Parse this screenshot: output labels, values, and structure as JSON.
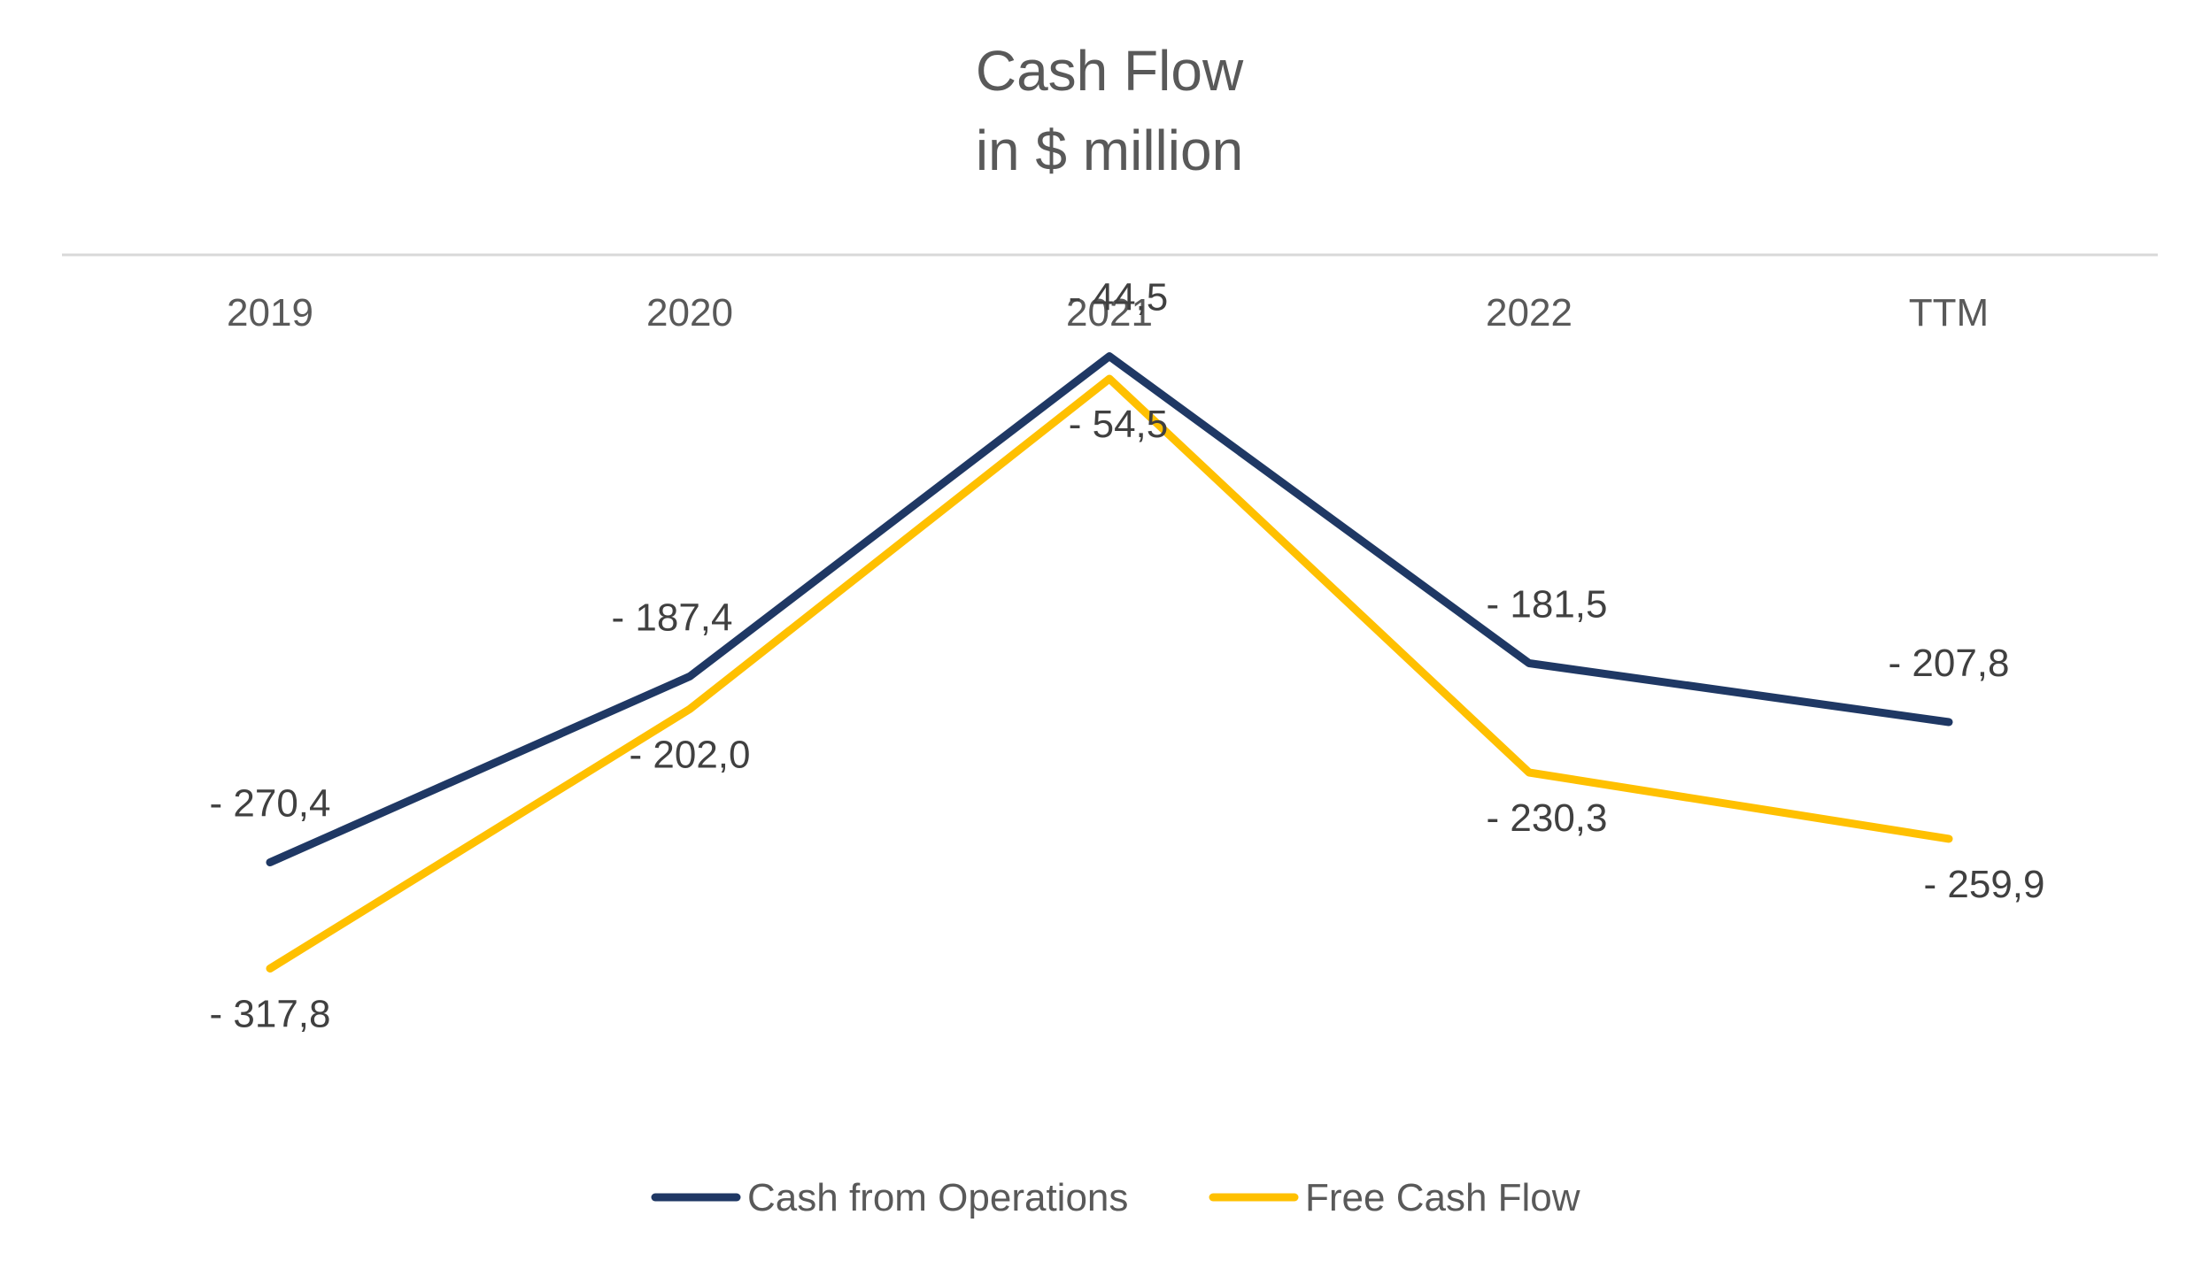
{
  "chart_data": {
    "type": "line",
    "title": "Cash Flow",
    "subtitle": "in $ million",
    "categories": [
      "2019",
      "2020",
      "2021",
      "2022",
      "TTM"
    ],
    "series": [
      {
        "name": "Cash from Operations",
        "color": "#1F3864",
        "values": [
          -270.4,
          -187.4,
          -44.5,
          -181.5,
          -207.8
        ],
        "labels": [
          "- 270,4",
          "- 187,4",
          "- 44,5",
          "- 181,5",
          "- 207,8"
        ]
      },
      {
        "name": "Free Cash Flow",
        "color": "#FFC000",
        "values": [
          -317.8,
          -202.0,
          -54.5,
          -230.3,
          -259.9
        ],
        "labels": [
          "- 317,8",
          "- 202,0",
          "- 54,5",
          "- 230,3",
          "- 259,9"
        ]
      }
    ],
    "xaxis_position": "top",
    "grid": false,
    "legend_position": "bottom"
  }
}
